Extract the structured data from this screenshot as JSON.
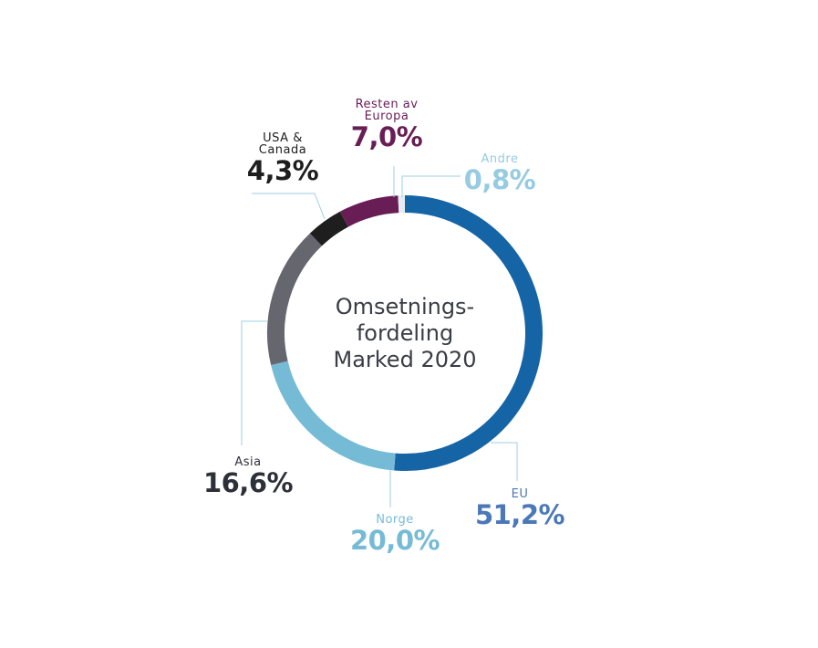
{
  "chart_data": {
    "type": "pie",
    "variant": "donut",
    "title": [
      "Omsetnings-",
      "fordeling",
      "Marked 2020"
    ],
    "start_angle": "top, clockwise",
    "slices": [
      {
        "name": "EU",
        "value": 51.2,
        "label": "51,2%",
        "color": "#1565a6",
        "text_color": "#4a78b8"
      },
      {
        "name": "Norge",
        "value": 20.0,
        "label": "20,0%",
        "color": "#76bbd6",
        "text_color": "#76bbd6"
      },
      {
        "name": "Asia",
        "value": 16.6,
        "label": "16,6%",
        "color": "#66666e",
        "text_color": "#2e3038"
      },
      {
        "name": "USA & Canada",
        "name_lines": [
          "USA &",
          "Canada"
        ],
        "value": 4.3,
        "label": "4,3%",
        "color": "#1e1e1e",
        "text_color": "#1e1e1e"
      },
      {
        "name": "Resten av Europa",
        "name_lines": [
          "Resten av",
          "Europa"
        ],
        "value": 7.0,
        "label": "7,0%",
        "color": "#681d55",
        "text_color": "#681d55"
      },
      {
        "name": "Andre",
        "value": 0.8,
        "label": "0,8%",
        "color": "#e4ecf0",
        "text_color": "#96cbe2"
      }
    ],
    "leader_line_color": "#9fcfe2"
  }
}
